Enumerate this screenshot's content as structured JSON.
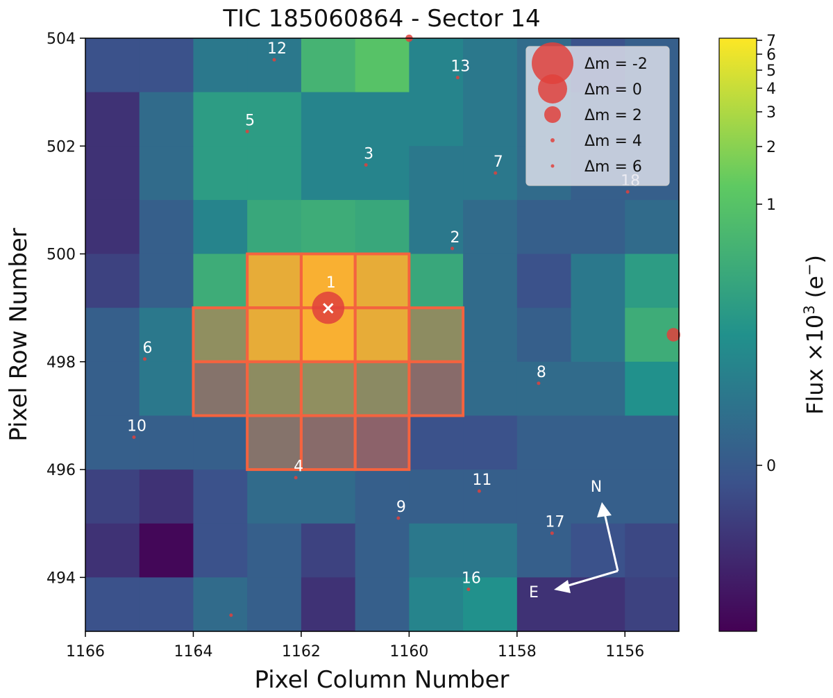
{
  "chart_data": {
    "type": "heatmap",
    "title": "TIC 185060864 - Sector 14",
    "xlabel": "Pixel Column Number",
    "ylabel": "Pixel Row Number",
    "colorbar_label": "Flux ×10³ (e⁻)",
    "colorbar_label_main": "Flux ×10",
    "colorbar_label_exp": "3",
    "colorbar_label_unit": " (e",
    "colorbar_label_unit_sup": "−",
    "colorbar_label_close": ")",
    "xlim": [
      1166,
      1155
    ],
    "ylim": [
      493,
      504
    ],
    "x_ticks": [
      1166,
      1164,
      1162,
      1160,
      1158,
      1156
    ],
    "y_ticks": [
      494,
      496,
      498,
      500,
      502,
      504
    ],
    "colorbar_ticks": [
      "0",
      "1",
      "2",
      "3",
      "4",
      "5",
      "6",
      "7"
    ],
    "colormap_stops": [
      "#440154",
      "#3b528b",
      "#21918c",
      "#5ec962",
      "#fde725"
    ],
    "grid_rows_top_to_bottom": [
      [
        0.25,
        0.25,
        0.4,
        0.4,
        0.65,
        0.72,
        0.45,
        0.4,
        0.35,
        0.25,
        0.3
      ],
      [
        0.15,
        0.35,
        0.55,
        0.55,
        0.45,
        0.45,
        0.45,
        0.4,
        0.35,
        0.3,
        0.3
      ],
      [
        0.15,
        0.35,
        0.55,
        0.55,
        0.45,
        0.45,
        0.4,
        0.4,
        0.35,
        0.3,
        0.3
      ],
      [
        0.15,
        0.3,
        0.45,
        0.6,
        0.62,
        0.6,
        0.4,
        0.35,
        0.3,
        0.3,
        0.35
      ],
      [
        0.2,
        0.3,
        0.62,
        0.95,
        1.0,
        0.95,
        0.6,
        0.35,
        0.25,
        0.4,
        0.55
      ],
      [
        0.3,
        0.4,
        0.62,
        0.95,
        1.0,
        0.95,
        0.6,
        0.35,
        0.3,
        0.4,
        0.62
      ],
      [
        0.3,
        0.4,
        0.4,
        0.6,
        0.62,
        0.58,
        0.35,
        0.35,
        0.35,
        0.35,
        0.5
      ],
      [
        0.3,
        0.3,
        0.3,
        0.4,
        0.35,
        0.28,
        0.25,
        0.25,
        0.3,
        0.3,
        0.3
      ],
      [
        0.2,
        0.15,
        0.25,
        0.35,
        0.35,
        0.3,
        0.3,
        0.3,
        0.3,
        0.3,
        0.3
      ],
      [
        0.15,
        0.02,
        0.25,
        0.3,
        0.2,
        0.3,
        0.4,
        0.4,
        0.3,
        0.25,
        0.22
      ],
      [
        0.25,
        0.25,
        0.35,
        0.3,
        0.15,
        0.3,
        0.45,
        0.5,
        0.15,
        0.15,
        0.2
      ]
    ],
    "aperture_mask": [
      [
        1163,
        500
      ],
      [
        1162,
        500
      ],
      [
        1161,
        500
      ],
      [
        1164,
        499
      ],
      [
        1163,
        499
      ],
      [
        1162,
        499
      ],
      [
        1161,
        499
      ],
      [
        1160,
        499
      ],
      [
        1164,
        498
      ],
      [
        1163,
        498
      ],
      [
        1162,
        498
      ],
      [
        1161,
        498
      ],
      [
        1160,
        498
      ],
      [
        1163,
        497
      ],
      [
        1162,
        497
      ],
      [
        1161,
        497
      ]
    ],
    "stars": [
      {
        "label": "1",
        "col": 1161.5,
        "row": 499.0,
        "dm": -0.5
      },
      {
        "label": "2",
        "col": 1159.2,
        "row": 500.1,
        "dm": 6.0
      },
      {
        "label": "3",
        "col": 1160.8,
        "row": 501.65,
        "dm": 5.5
      },
      {
        "label": "4",
        "col": 1162.1,
        "row": 495.85,
        "dm": 5.5
      },
      {
        "label": "5",
        "col": 1163.0,
        "row": 502.27,
        "dm": 4.5
      },
      {
        "label": "6",
        "col": 1164.9,
        "row": 498.05,
        "dm": 5.0
      },
      {
        "label": "7",
        "col": 1158.4,
        "row": 501.5,
        "dm": 4.5
      },
      {
        "label": "8",
        "col": 1157.6,
        "row": 497.6,
        "dm": 5.5
      },
      {
        "label": "9",
        "col": 1160.2,
        "row": 495.1,
        "dm": 5.0
      },
      {
        "label": "10",
        "col": 1165.1,
        "row": 496.6,
        "dm": 5.0
      },
      {
        "label": "11",
        "col": 1158.7,
        "row": 495.6,
        "dm": 5.5
      },
      {
        "label": "12",
        "col": 1162.5,
        "row": 503.6,
        "dm": 5.5
      },
      {
        "label": "13",
        "col": 1159.1,
        "row": 503.27,
        "dm": 4.5
      },
      {
        "label": "16",
        "col": 1158.9,
        "row": 493.78,
        "dm": 4.5
      },
      {
        "label": "17",
        "col": 1157.35,
        "row": 494.82,
        "dm": 5.0
      },
      {
        "label": "18",
        "col": 1155.95,
        "row": 501.15,
        "dm": 5.5
      },
      {
        "label": "",
        "col": 1160.0,
        "row": 504.0,
        "dm": 3.5
      },
      {
        "label": "",
        "col": 1155.1,
        "row": 498.5,
        "dm": 2.5
      },
      {
        "label": "",
        "col": 1163.3,
        "row": 493.3,
        "dm": 5.5
      }
    ],
    "legend": {
      "position": "upper right",
      "entries": [
        {
          "label": "Δm =  -2",
          "dm": -2
        },
        {
          "label": "Δm =  0",
          "dm": 0
        },
        {
          "label": "Δm =  2",
          "dm": 2
        },
        {
          "label": "Δm =  4",
          "dm": 4
        },
        {
          "label": "Δm =  6",
          "dm": 6
        }
      ]
    },
    "compass": {
      "north": "N",
      "east": "E"
    },
    "target_marker": "×"
  }
}
